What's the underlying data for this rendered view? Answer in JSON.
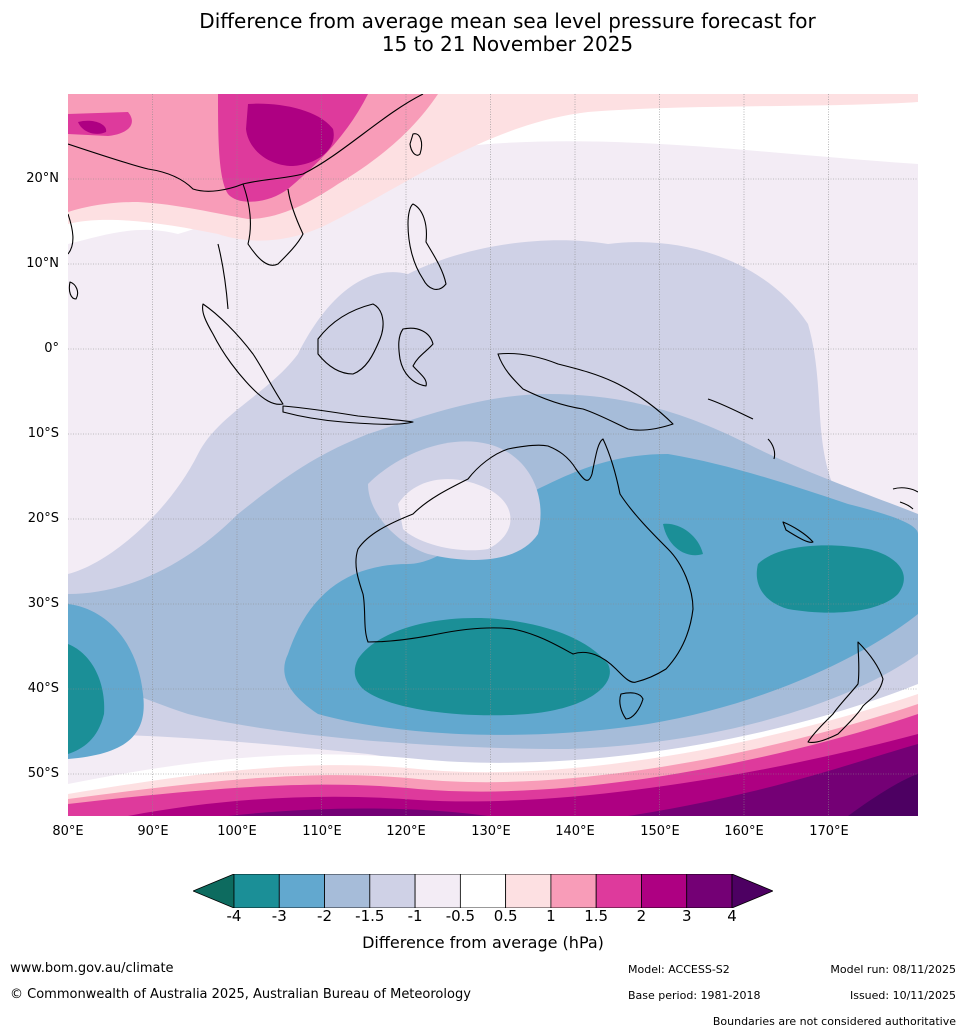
{
  "title": {
    "line1": "Difference from average mean sea level pressure forecast for",
    "line2": "15 to 21 November 2025"
  },
  "map": {
    "lat_labels": [
      "20°N",
      "10°N",
      "0°",
      "10°S",
      "20°S",
      "30°S",
      "40°S",
      "50°S"
    ],
    "lon_labels": [
      "80°E",
      "90°E",
      "100°E",
      "110°E",
      "120°E",
      "130°E",
      "140°E",
      "150°E",
      "160°E",
      "170°E"
    ]
  },
  "colorbar": {
    "ticks": [
      "-4",
      "-3",
      "-2",
      "-1.5",
      "-1",
      "-0.5",
      "0.5",
      "1",
      "1.5",
      "2",
      "3",
      "4"
    ],
    "colors": [
      "#0d6b5f",
      "#1b8f97",
      "#62a8cf",
      "#a6bcd9",
      "#cfd1e6",
      "#f3ecf5",
      "#ffffff",
      "#fde0e2",
      "#f89cb8",
      "#de3a9c",
      "#ae0082",
      "#740075",
      "#4d0062"
    ],
    "label": "Difference from average (hPa)"
  },
  "footer": {
    "website": "www.bom.gov.au/climate",
    "copyright": "© Commonwealth of Australia 2025, Australian Bureau of Meteorology",
    "model": "Model: ACCESS-S2",
    "base_period": "Base period: 1981-2018",
    "model_run": "Model run: 08/11/2025",
    "issued": "Issued: 10/11/2025",
    "disclaimer": "Boundaries are not considered authoritative"
  }
}
